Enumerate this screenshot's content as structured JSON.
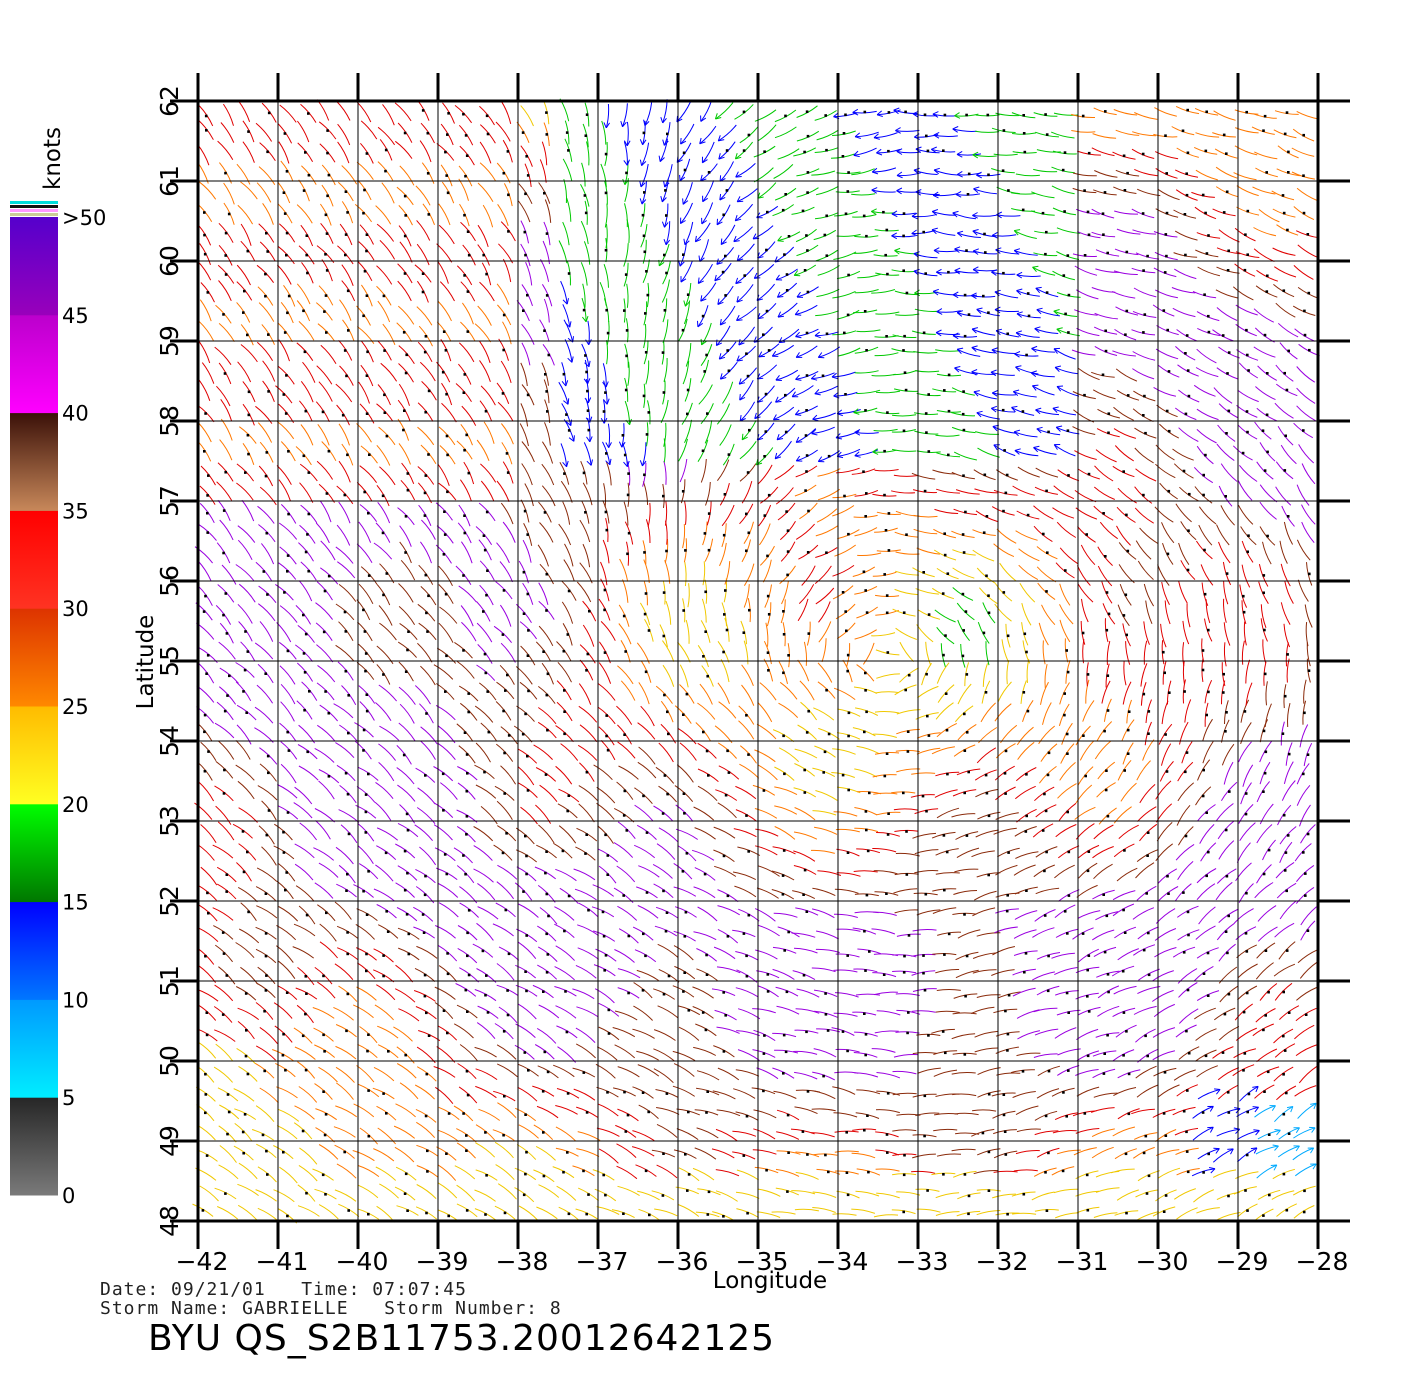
{
  "header": {
    "date_label": "Date:",
    "date_value": "09/21/01",
    "time_label": "Time:",
    "time_value": "07:07:45",
    "storm_name_label": "Storm Name:",
    "storm_name_value": "GABRIELLE",
    "storm_number_label": "Storm Number:",
    "storm_number_value": "8",
    "product_id": "BYU QS_S2B11753.20012642125"
  },
  "colorbar": {
    "title": "knots",
    "labels": [
      "0",
      "5",
      "10",
      "15",
      "20",
      "25",
      "30",
      "35",
      "40",
      "45",
      ">50"
    ],
    "bands": [
      {
        "range": [
          0,
          5
        ],
        "from": "#7a7a7a",
        "to": "#262626"
      },
      {
        "range": [
          5,
          10
        ],
        "from": "#00eeff",
        "to": "#0099ff"
      },
      {
        "range": [
          10,
          15
        ],
        "from": "#0077ff",
        "to": "#0000ff"
      },
      {
        "range": [
          15,
          20
        ],
        "from": "#007700",
        "to": "#00ff00"
      },
      {
        "range": [
          20,
          25
        ],
        "from": "#ffff22",
        "to": "#ffbb00"
      },
      {
        "range": [
          25,
          30
        ],
        "from": "#ff8800",
        "to": "#dd3300"
      },
      {
        "range": [
          30,
          35
        ],
        "from": "#ff3322",
        "to": "#ff0000"
      },
      {
        "range": [
          35,
          40
        ],
        "from": "#c8885a",
        "to": "#3a1008"
      },
      {
        "range": [
          40,
          45
        ],
        "from": "#ff00ff",
        "to": "#bb00cc"
      },
      {
        "range": [
          45,
          50
        ],
        "from": "#9900bb",
        "to": "#5500cc"
      }
    ]
  },
  "map": {
    "xlabel": "Longitude",
    "ylabel": "Latitude",
    "lon_range": [
      -42,
      -28
    ],
    "lat_range": [
      48,
      62
    ],
    "lon_ticks": [
      "−42",
      "−41",
      "−40",
      "−39",
      "−38",
      "−37",
      "−36",
      "−35",
      "−34",
      "−33",
      "−32",
      "−31",
      "−30",
      "−29",
      "−28"
    ],
    "lat_ticks": [
      "48",
      "49",
      "50",
      "51",
      "52",
      "53",
      "54",
      "55",
      "56",
      "57",
      "58",
      "59",
      "60",
      "61",
      "62"
    ],
    "grid": true,
    "storm_center": {
      "lon": -33.4,
      "lat": 55.0
    },
    "speed_colors": [
      {
        "max": 5,
        "color": "#3a3a3a"
      },
      {
        "max": 10,
        "color": "#00aaff"
      },
      {
        "max": 15,
        "color": "#0000ff"
      },
      {
        "max": 20,
        "color": "#00c800"
      },
      {
        "max": 25,
        "color": "#f0c800"
      },
      {
        "max": 30,
        "color": "#ff7800"
      },
      {
        "max": 35,
        "color": "#e00000"
      },
      {
        "max": 40,
        "color": "#8a2a0a"
      },
      {
        "max": 999,
        "color": "#9a00e0"
      }
    ]
  }
}
